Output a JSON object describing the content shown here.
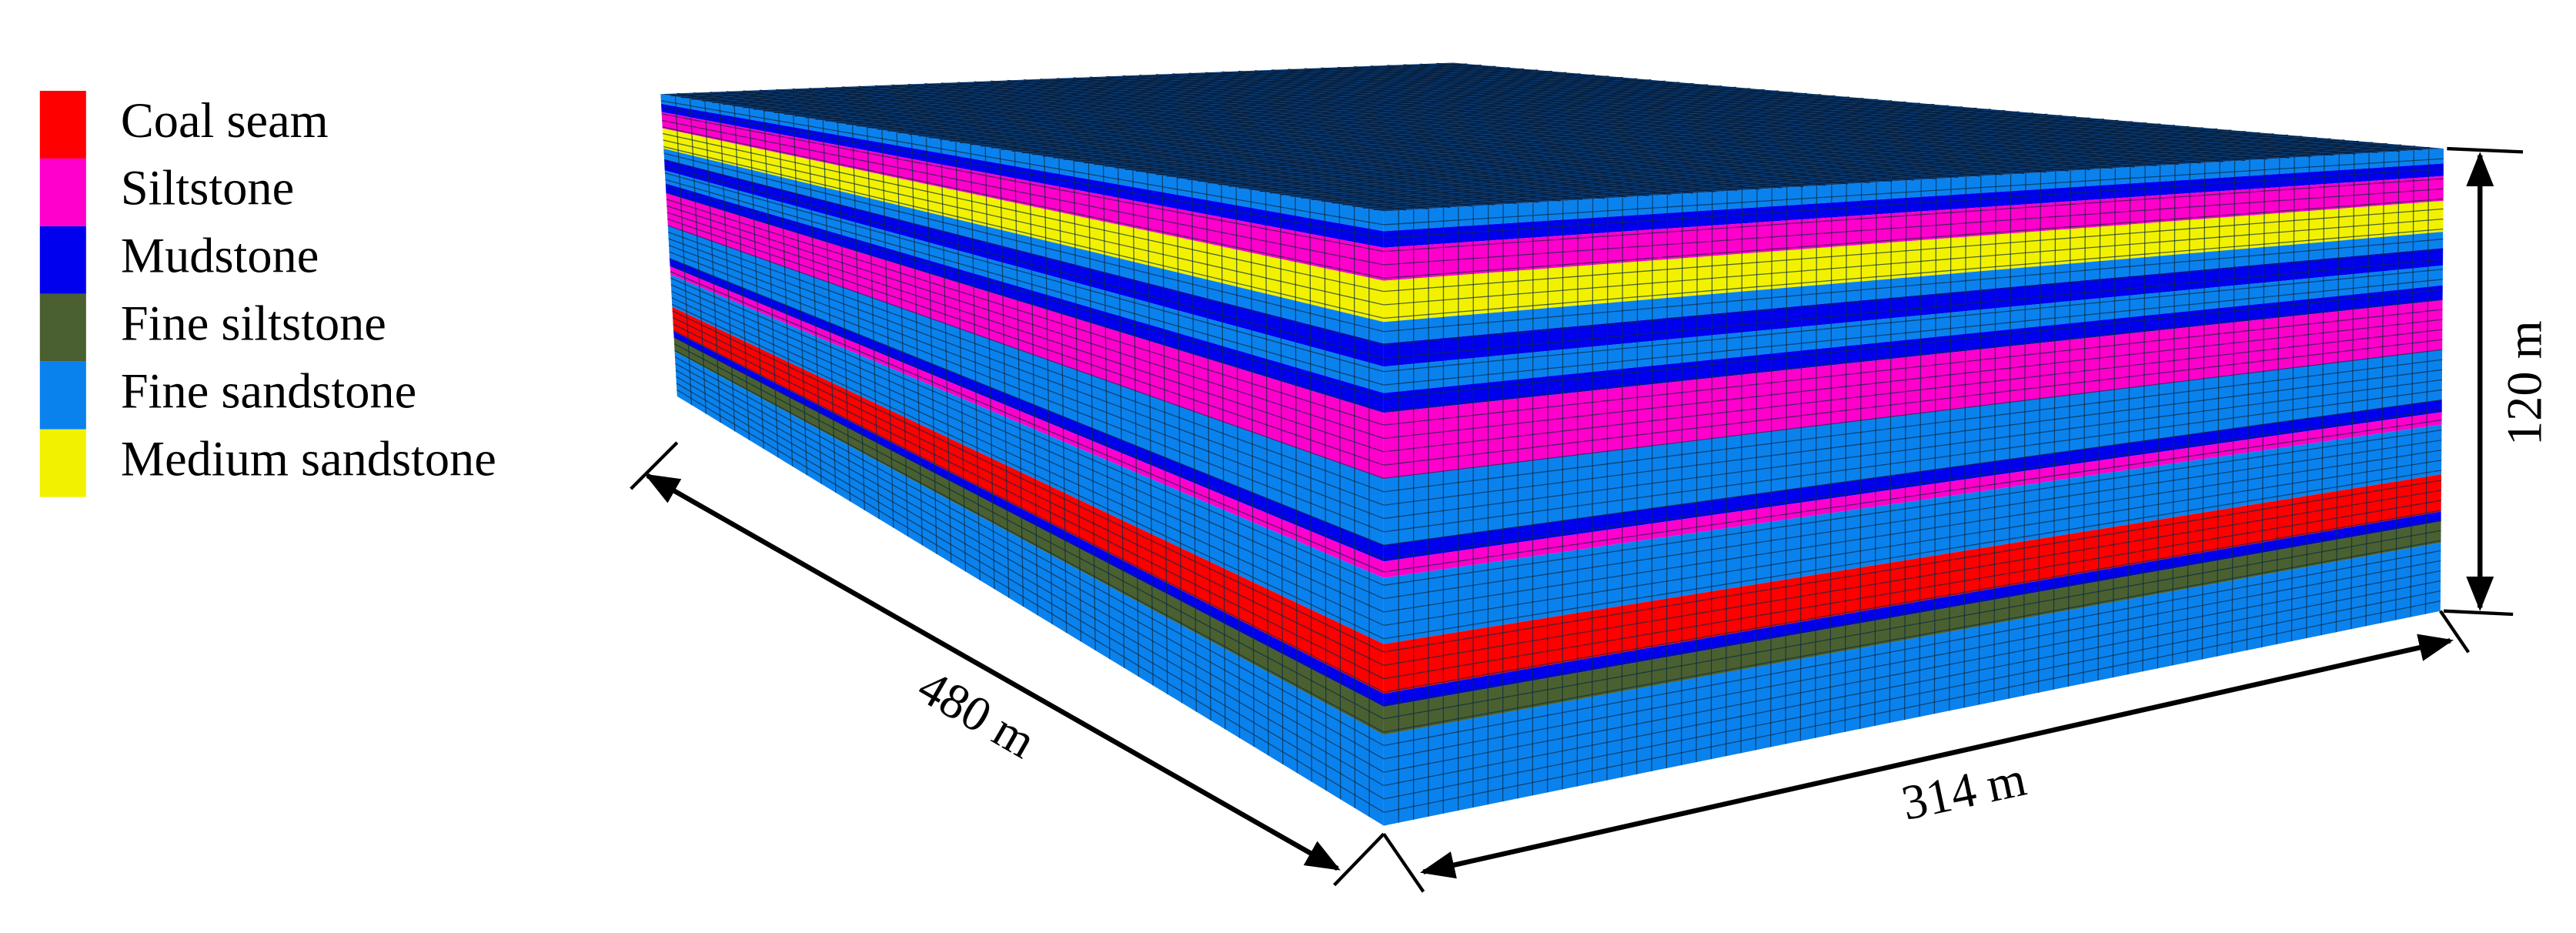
{
  "legend": [
    {
      "label": "Coal seam",
      "color": "#ff0000"
    },
    {
      "label": "Siltstone",
      "color": "#ff00cc"
    },
    {
      "label": "Mudstone",
      "color": "#0000ee"
    },
    {
      "label": "Fine siltstone",
      "color": "#4a6030"
    },
    {
      "label": "Fine sandstone",
      "color": "#0a82ee"
    },
    {
      "label": "Medium sandstone",
      "color": "#f2f200"
    }
  ],
  "dimensions": {
    "length": "480 m",
    "width": "314 m",
    "height": "120 m"
  }
}
